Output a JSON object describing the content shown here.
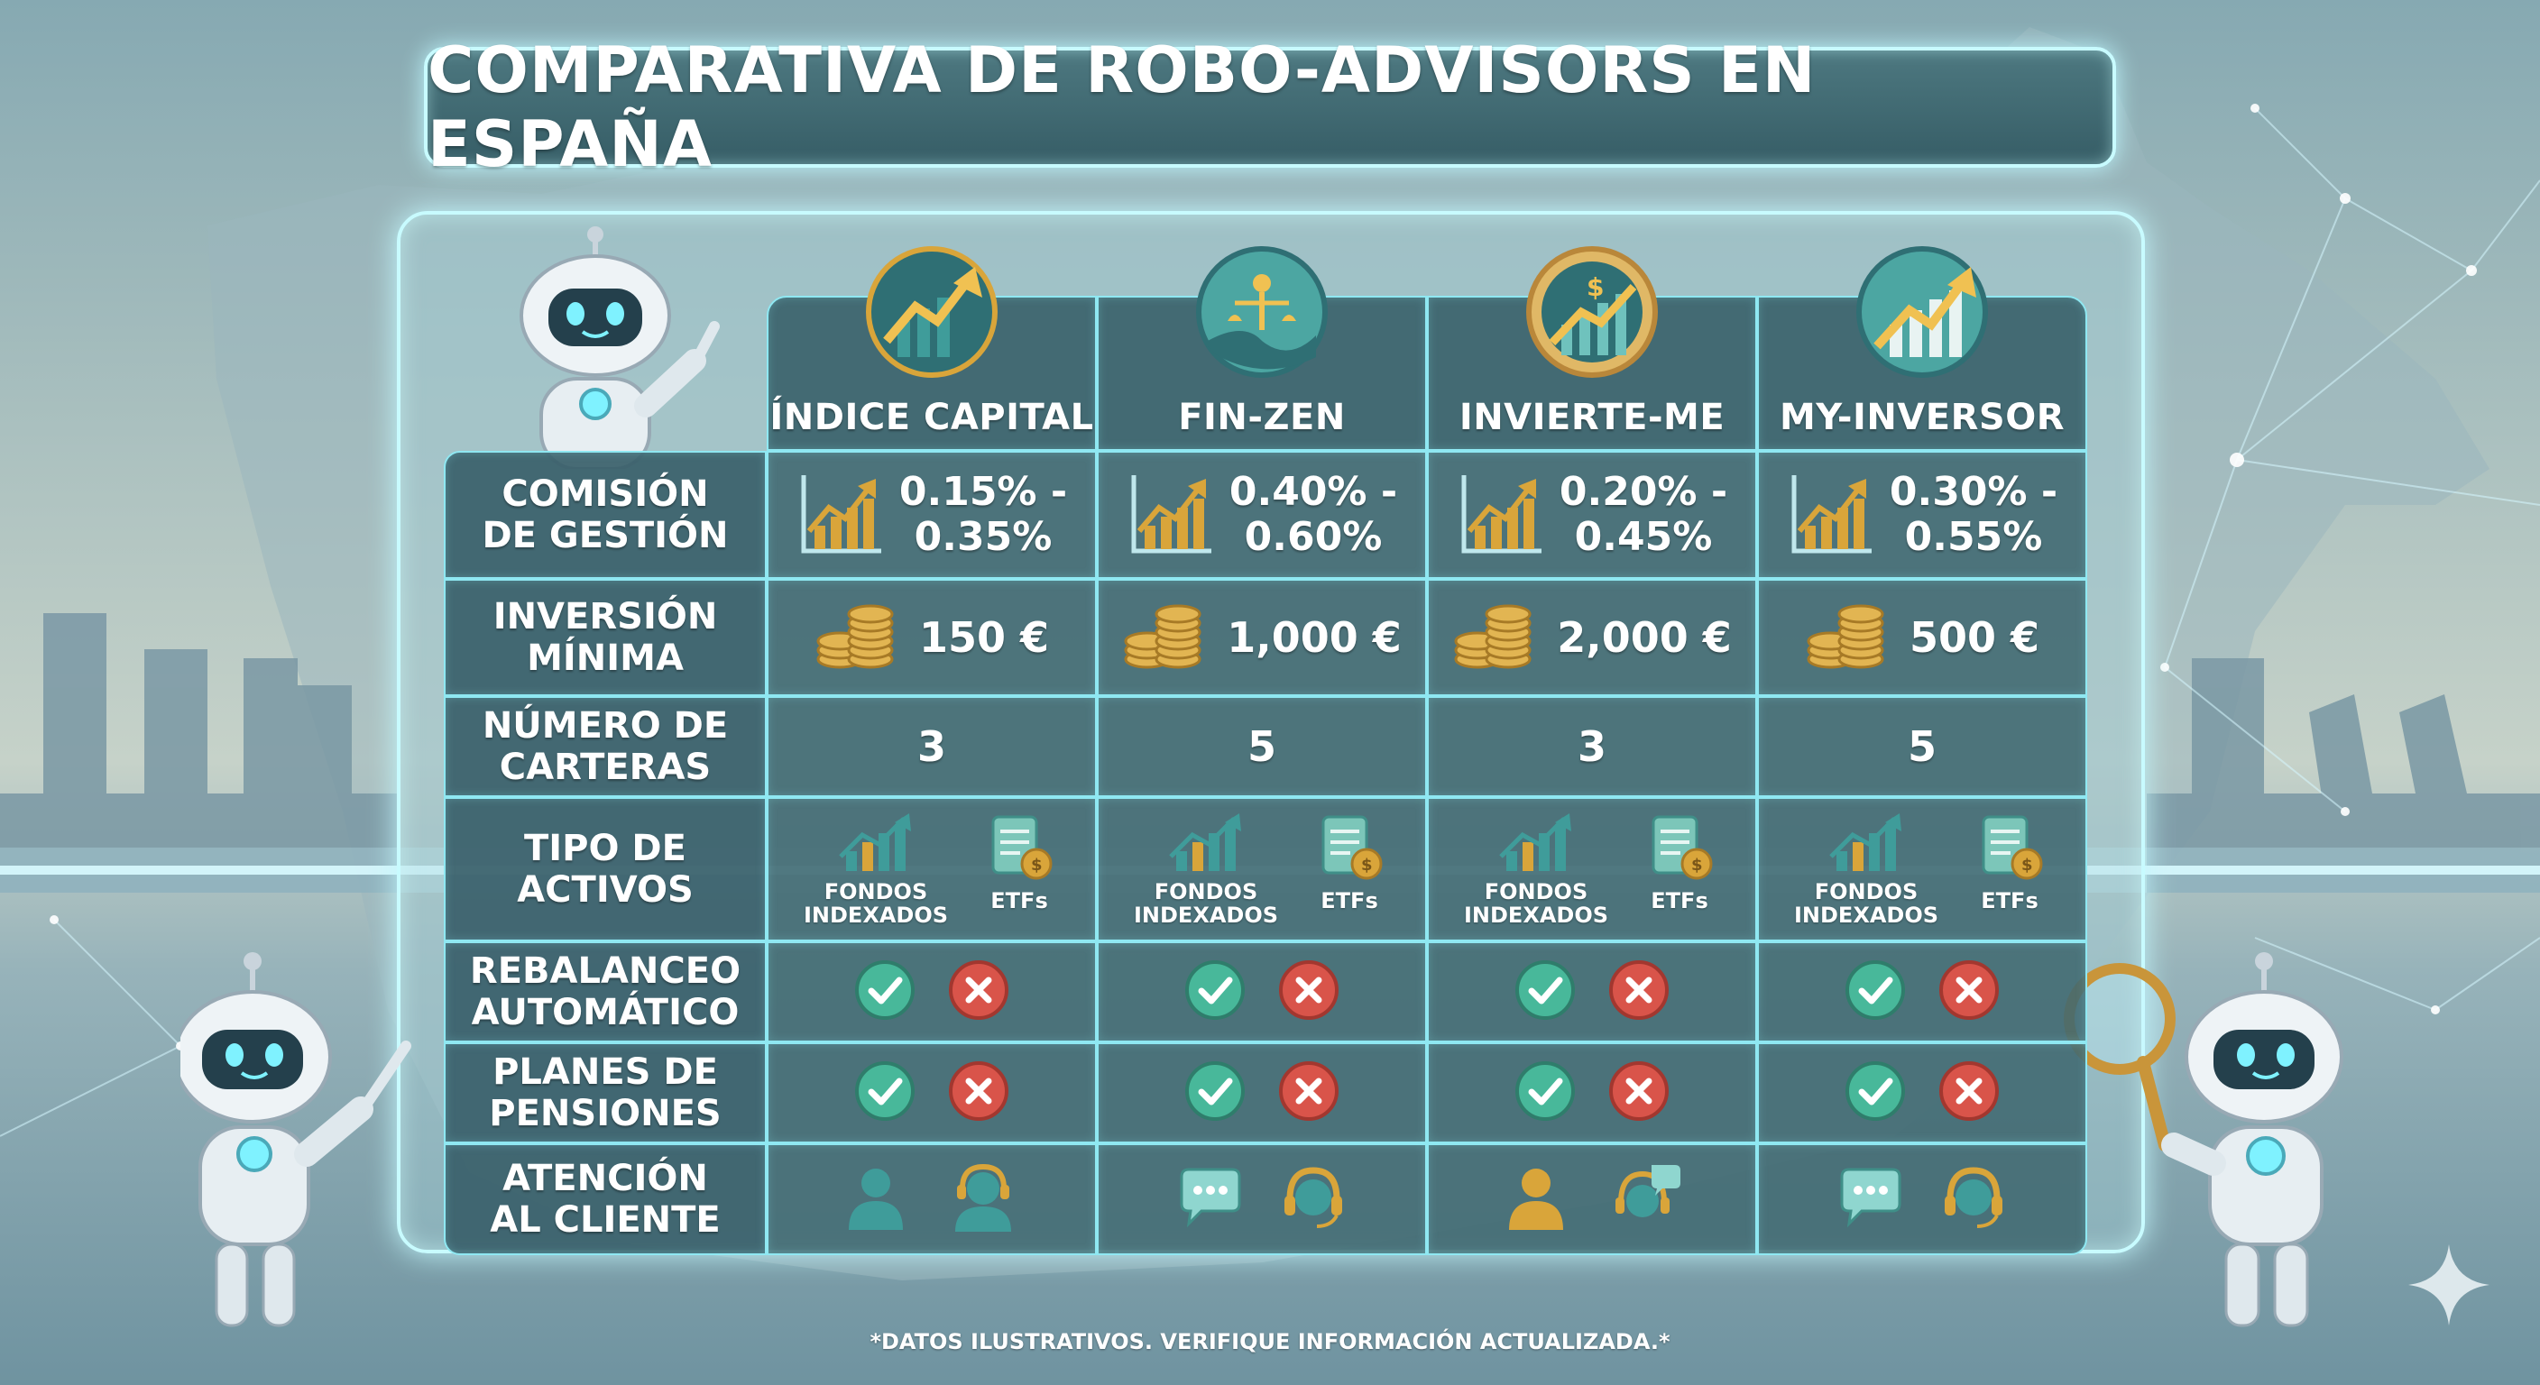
{
  "title": "COMPARATIVA DE ROBO-ADVISORS EN ESPAÑA",
  "providers": [
    {
      "name": "ÍNDICE CAPITAL",
      "logo_icon": "bar-chart-arrow-logo",
      "fee": "0.15% -\n0.35%",
      "min_investment": "150 €",
      "portfolios": "3",
      "rebalancing": [
        "check",
        "cross"
      ],
      "pensions": [
        "check",
        "cross"
      ],
      "support_icons": [
        "person-icon",
        "headset-person-icon"
      ]
    },
    {
      "name": "FIN-ZEN",
      "logo_icon": "scales-wave-logo",
      "fee": "0.40% -\n0.60%",
      "min_investment": "1,000 €",
      "portfolios": "5",
      "rebalancing": [
        "check",
        "cross"
      ],
      "pensions": [
        "check",
        "cross"
      ],
      "support_icons": [
        "chat-bubble-icon",
        "headset-icon"
      ]
    },
    {
      "name": "INVIERTE-ME",
      "logo_icon": "dollar-chart-logo",
      "fee": "0.20% -\n0.45%",
      "min_investment": "2,000 €",
      "portfolios": "3",
      "rebalancing": [
        "check",
        "cross"
      ],
      "pensions": [
        "check",
        "cross"
      ],
      "support_icons": [
        "person-icon",
        "headset-chat-icon"
      ]
    },
    {
      "name": "MY-INVERSOR",
      "logo_icon": "growth-chart-logo",
      "fee": "0.30% -\n0.55%",
      "min_investment": "500 €",
      "portfolios": "5",
      "rebalancing": [
        "check",
        "cross"
      ],
      "pensions": [
        "check",
        "cross"
      ],
      "support_icons": [
        "chat-bubble-icon",
        "headset-icon"
      ]
    }
  ],
  "row_labels": {
    "fee": "COMISIÓN\nDE GESTIÓN",
    "min_investment": "INVERSIÓN\nMÍNIMA",
    "portfolios": "NÚMERO DE\nCARTERAS",
    "assets": "TIPO DE\nACTIVOS",
    "rebalancing": "REBALANCEO\nAUTOMÁTICO",
    "pensions": "PLANES DE\nPENSIONES",
    "support": "ATENCIÓN\nAL CLIENTE"
  },
  "asset_types": [
    "FONDOS\nINDEXADOS",
    "ETFs"
  ],
  "footnote": "*DATOS ILUSTRATIVOS. VERIFIQUE INFORMACIÓN ACTUALIZADA.*",
  "colors": {
    "cell_bg": "#406870",
    "glow": "#8fe8f2",
    "check": "#48b89a",
    "cross": "#d9544a",
    "gold": "#d9a53a",
    "teal": "#3f9c9a"
  }
}
